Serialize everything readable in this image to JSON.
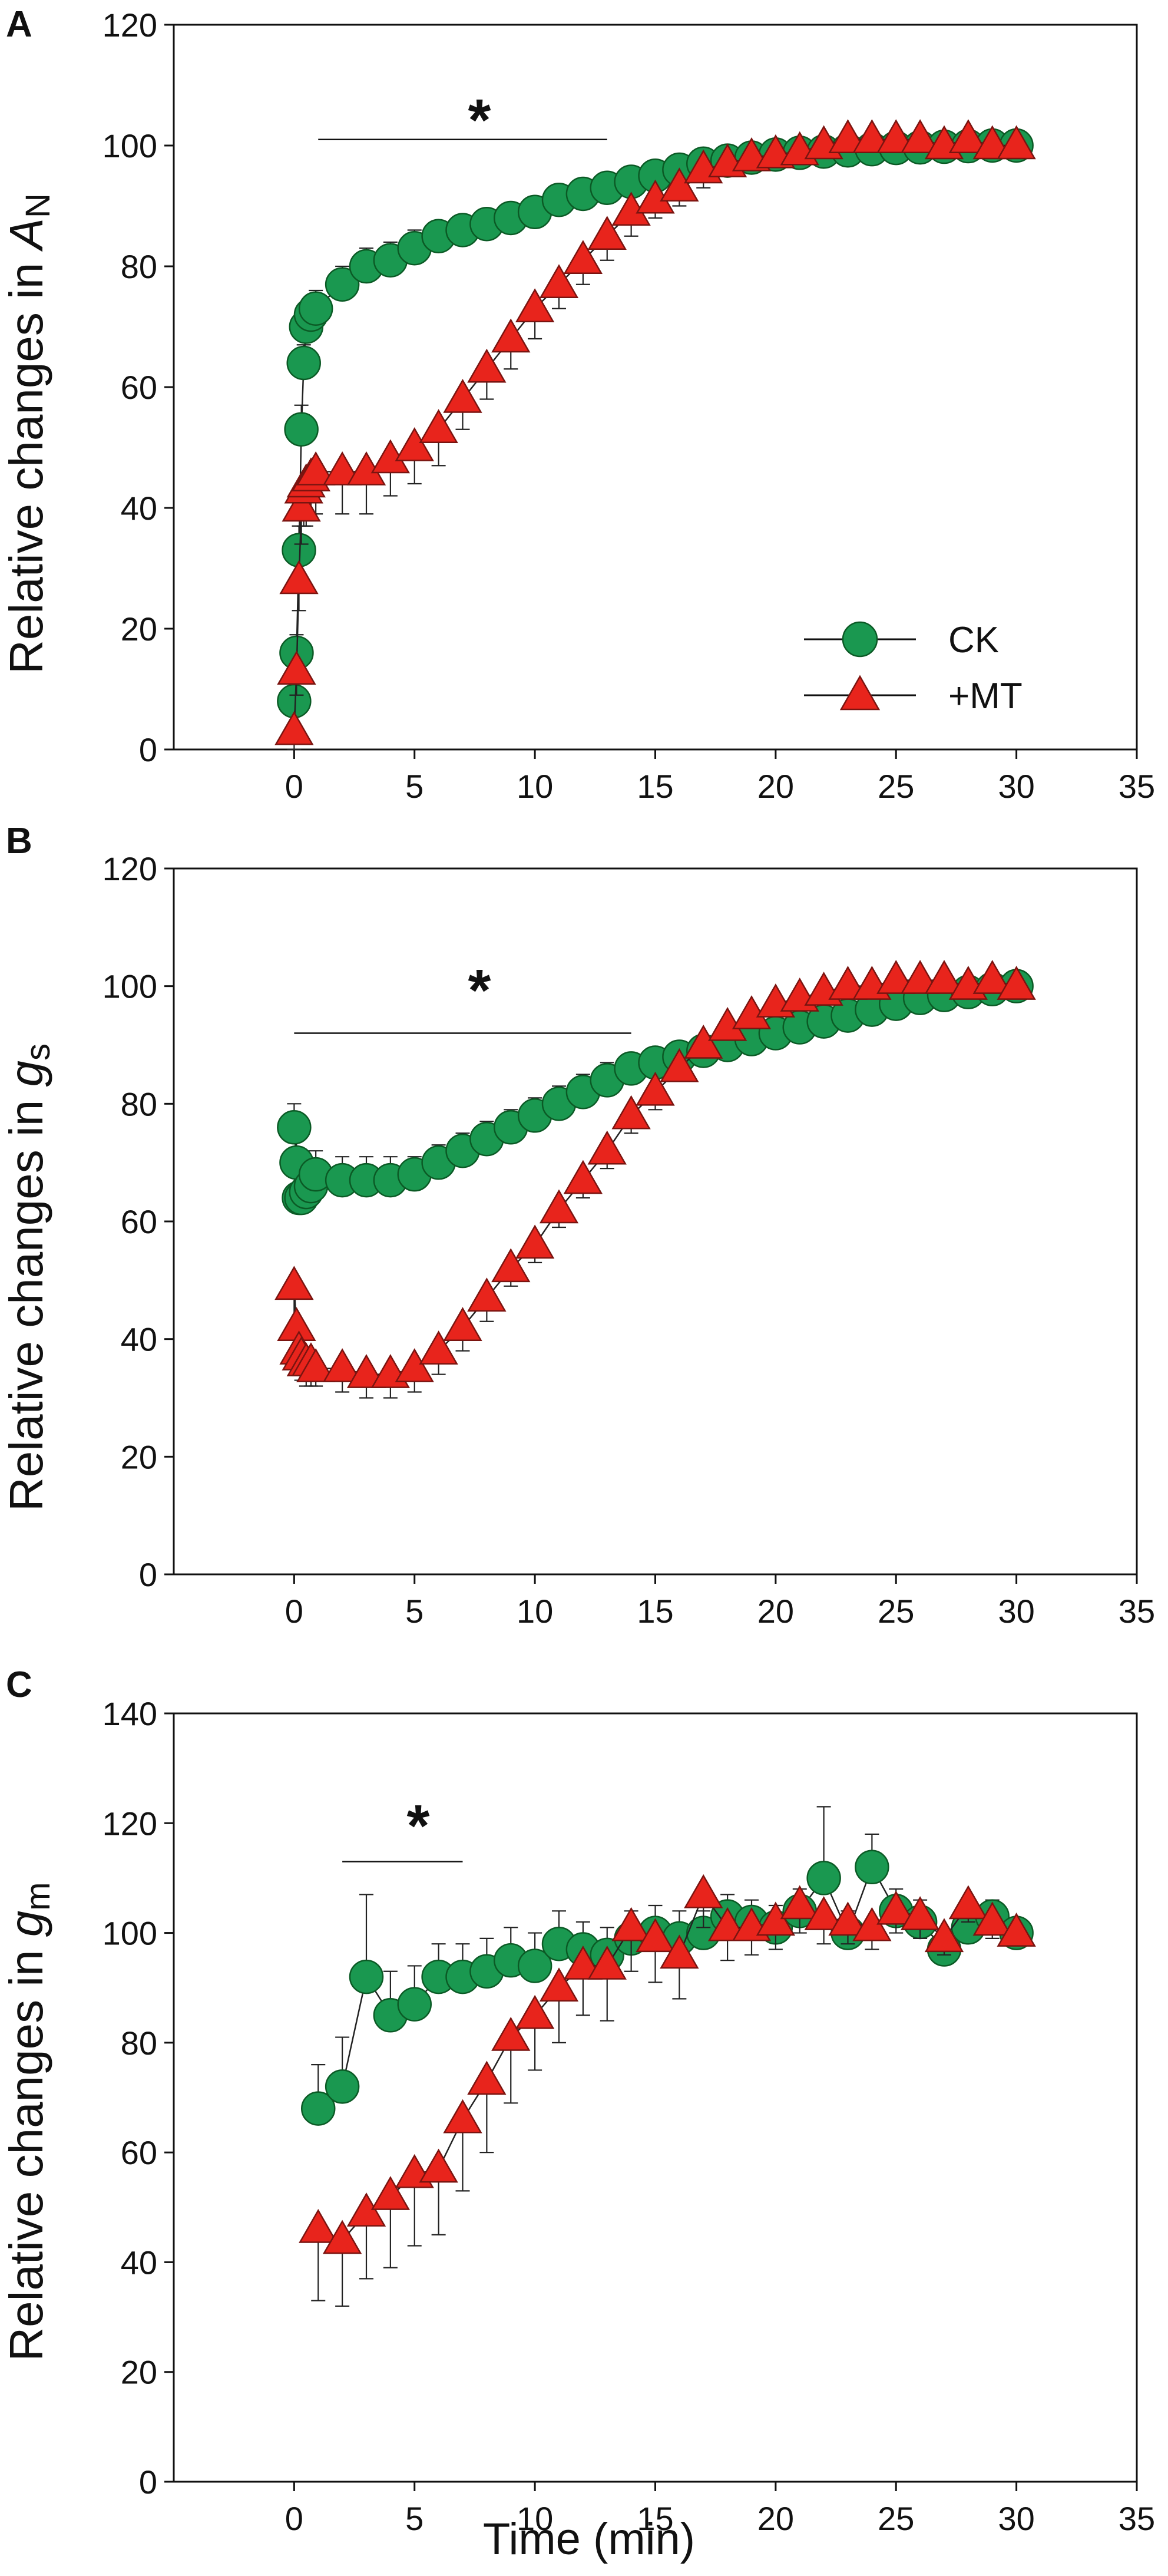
{
  "colors": {
    "ck": "#1a9850",
    "ck_edge": "#0b5a25",
    "mt": "#e8241c",
    "mt_edge": "#7a1410",
    "axis": "#111111"
  },
  "shared": {
    "xlabel": "Time (min)",
    "xlim": [
      -5,
      35
    ],
    "xticks": [
      0,
      5,
      10,
      15,
      20,
      25,
      30,
      35
    ],
    "legend": {
      "position": "bottom-right",
      "entries": [
        "CK",
        "+MT"
      ]
    }
  },
  "chart_data": [
    {
      "type": "line",
      "panel": "A",
      "ylabel_prefix": "Relative changes in ",
      "ylabel_symbol": "A",
      "ylabel_sub": "N",
      "ylim": [
        0,
        120
      ],
      "yticks": [
        0,
        20,
        40,
        60,
        80,
        100,
        120
      ],
      "significance": {
        "label": "*",
        "x_range": [
          1,
          13
        ],
        "y": 101
      },
      "series": [
        {
          "name": "CK",
          "marker": "circle",
          "x": [
            0,
            0.1,
            0.2,
            0.3,
            0.4,
            0.5,
            0.7,
            0.9,
            2,
            3,
            4,
            5,
            6,
            7,
            8,
            9,
            10,
            11,
            12,
            13,
            14,
            15,
            16,
            17,
            18,
            19,
            20,
            21,
            22,
            23,
            24,
            25,
            26,
            27,
            28,
            29,
            30
          ],
          "y": [
            8,
            16,
            33,
            53,
            64,
            70,
            72,
            73,
            77,
            80,
            81,
            83,
            85,
            86,
            87,
            88,
            89,
            91,
            92,
            93,
            94,
            95,
            96,
            97,
            97.5,
            98,
            98.5,
            98.8,
            99,
            99.2,
            99.4,
            99.6,
            99.7,
            99.8,
            99.9,
            100,
            100
          ],
          "err": [
            3,
            3,
            4,
            4,
            3,
            3,
            3,
            3,
            3,
            3,
            3,
            3,
            2,
            2,
            2,
            2,
            2,
            2,
            2,
            2,
            2,
            2,
            2,
            2,
            2,
            2,
            1,
            1,
            1,
            1,
            1,
            1,
            1,
            1,
            1,
            1,
            1
          ]
        },
        {
          "name": "+MT",
          "marker": "triangle",
          "x": [
            0,
            0.1,
            0.2,
            0.3,
            0.4,
            0.5,
            0.7,
            0.9,
            2,
            3,
            4,
            5,
            6,
            7,
            8,
            9,
            10,
            11,
            12,
            13,
            14,
            15,
            16,
            17,
            18,
            19,
            20,
            21,
            22,
            23,
            24,
            25,
            26,
            27,
            28,
            29,
            30
          ],
          "y": [
            3,
            13,
            28,
            40,
            43,
            44,
            45,
            46,
            46,
            46,
            48,
            50,
            53,
            58,
            63,
            68,
            73,
            77,
            81,
            85,
            89,
            91,
            93,
            96,
            97,
            98,
            98.5,
            99,
            100,
            101,
            101,
            101,
            101,
            100,
            101,
            100,
            100
          ],
          "err": [
            3,
            4,
            5,
            6,
            6,
            7,
            7,
            7,
            7,
            7,
            6,
            6,
            6,
            5,
            5,
            5,
            5,
            4,
            4,
            4,
            4,
            3,
            3,
            3,
            2,
            2,
            2,
            2,
            2,
            2,
            2,
            2,
            2,
            2,
            2,
            2,
            2
          ]
        }
      ]
    },
    {
      "type": "line",
      "panel": "B",
      "ylabel_prefix": "Relative changes in ",
      "ylabel_symbol": "g",
      "ylabel_sub": "s",
      "ylim": [
        0,
        120
      ],
      "yticks": [
        0,
        20,
        40,
        60,
        80,
        100,
        120
      ],
      "significance": {
        "label": "*",
        "x_range": [
          0,
          14
        ],
        "y": 92
      },
      "series": [
        {
          "name": "CK",
          "marker": "circle",
          "x": [
            0,
            0.1,
            0.2,
            0.3,
            0.5,
            0.7,
            0.9,
            2,
            3,
            4,
            5,
            6,
            7,
            8,
            9,
            10,
            11,
            12,
            13,
            14,
            15,
            16,
            17,
            18,
            19,
            20,
            21,
            22,
            23,
            24,
            25,
            26,
            27,
            28,
            29,
            30
          ],
          "y": [
            76,
            70,
            64,
            64,
            65,
            66,
            68,
            67,
            67,
            67,
            68,
            70,
            72,
            74,
            76,
            78,
            80,
            82,
            84,
            86,
            87,
            88,
            89,
            90,
            91,
            92,
            93,
            94,
            95,
            96,
            97,
            98,
            98.5,
            99,
            99.5,
            100
          ],
          "err": [
            4,
            4,
            4,
            4,
            4,
            4,
            4,
            4,
            4,
            4,
            3,
            3,
            3,
            3,
            3,
            3,
            3,
            3,
            3,
            2,
            2,
            2,
            2,
            2,
            2,
            2,
            2,
            2,
            2,
            1,
            1,
            1,
            1,
            1,
            1,
            1
          ]
        },
        {
          "name": "+MT",
          "marker": "triangle",
          "x": [
            0,
            0.1,
            0.2,
            0.3,
            0.5,
            0.7,
            0.9,
            2,
            3,
            4,
            5,
            6,
            7,
            8,
            9,
            10,
            11,
            12,
            13,
            14,
            15,
            16,
            17,
            18,
            19,
            20,
            21,
            22,
            23,
            24,
            25,
            26,
            27,
            28,
            29,
            30
          ],
          "y": [
            49,
            42,
            38,
            37,
            36,
            36,
            35,
            35,
            34,
            34,
            35,
            38,
            42,
            47,
            52,
            56,
            62,
            67,
            72,
            78,
            82,
            86,
            90,
            93,
            95,
            97,
            98,
            99,
            100,
            100,
            101,
            101,
            101,
            100,
            101,
            100
          ],
          "err": [
            8,
            5,
            4,
            4,
            4,
            4,
            3,
            4,
            4,
            4,
            4,
            4,
            4,
            4,
            3,
            3,
            3,
            3,
            3,
            3,
            3,
            2,
            2,
            2,
            2,
            2,
            2,
            2,
            2,
            2,
            2,
            2,
            2,
            2,
            2,
            1
          ]
        }
      ]
    },
    {
      "type": "line",
      "panel": "C",
      "ylabel_prefix": "Relative changes in ",
      "ylabel_symbol": "g",
      "ylabel_sub": "m",
      "ylim": [
        0,
        140
      ],
      "yticks": [
        0,
        20,
        40,
        60,
        80,
        100,
        120,
        140
      ],
      "significance": {
        "label": "*",
        "x_range": [
          2,
          7
        ],
        "y": 113
      },
      "series": [
        {
          "name": "CK",
          "marker": "circle",
          "x": [
            1,
            2,
            3,
            4,
            5,
            6,
            7,
            8,
            9,
            10,
            11,
            12,
            13,
            14,
            15,
            16,
            17,
            18,
            19,
            20,
            21,
            22,
            23,
            24,
            25,
            26,
            27,
            28,
            29,
            30
          ],
          "y": [
            68,
            72,
            92,
            85,
            87,
            92,
            92,
            93,
            95,
            94,
            98,
            97,
            96,
            99,
            100,
            99,
            100,
            103,
            102,
            101,
            104,
            110,
            100,
            112,
            104,
            102,
            97,
            101,
            103,
            100
          ],
          "err": [
            8,
            9,
            15,
            8,
            7,
            6,
            6,
            6,
            6,
            6,
            6,
            5,
            5,
            5,
            5,
            5,
            4,
            4,
            4,
            4,
            4,
            13,
            4,
            6,
            4,
            4,
            3,
            3,
            3,
            2
          ]
        },
        {
          "name": "+MT",
          "marker": "triangle",
          "x": [
            1,
            2,
            3,
            4,
            5,
            6,
            7,
            8,
            9,
            10,
            11,
            12,
            13,
            14,
            15,
            16,
            17,
            18,
            19,
            20,
            21,
            22,
            23,
            24,
            25,
            26,
            27,
            28,
            29,
            30
          ],
          "y": [
            46,
            44,
            49,
            52,
            56,
            57,
            66,
            73,
            81,
            85,
            90,
            94,
            94,
            101,
            99,
            96,
            107,
            101,
            101,
            102,
            105,
            103,
            102,
            101,
            104,
            103,
            99,
            105,
            102,
            100
          ],
          "err": [
            13,
            12,
            12,
            13,
            13,
            12,
            13,
            13,
            12,
            10,
            10,
            9,
            10,
            8,
            8,
            8,
            6,
            6,
            5,
            5,
            5,
            5,
            4,
            4,
            4,
            4,
            3,
            3,
            3,
            2
          ]
        }
      ]
    }
  ]
}
